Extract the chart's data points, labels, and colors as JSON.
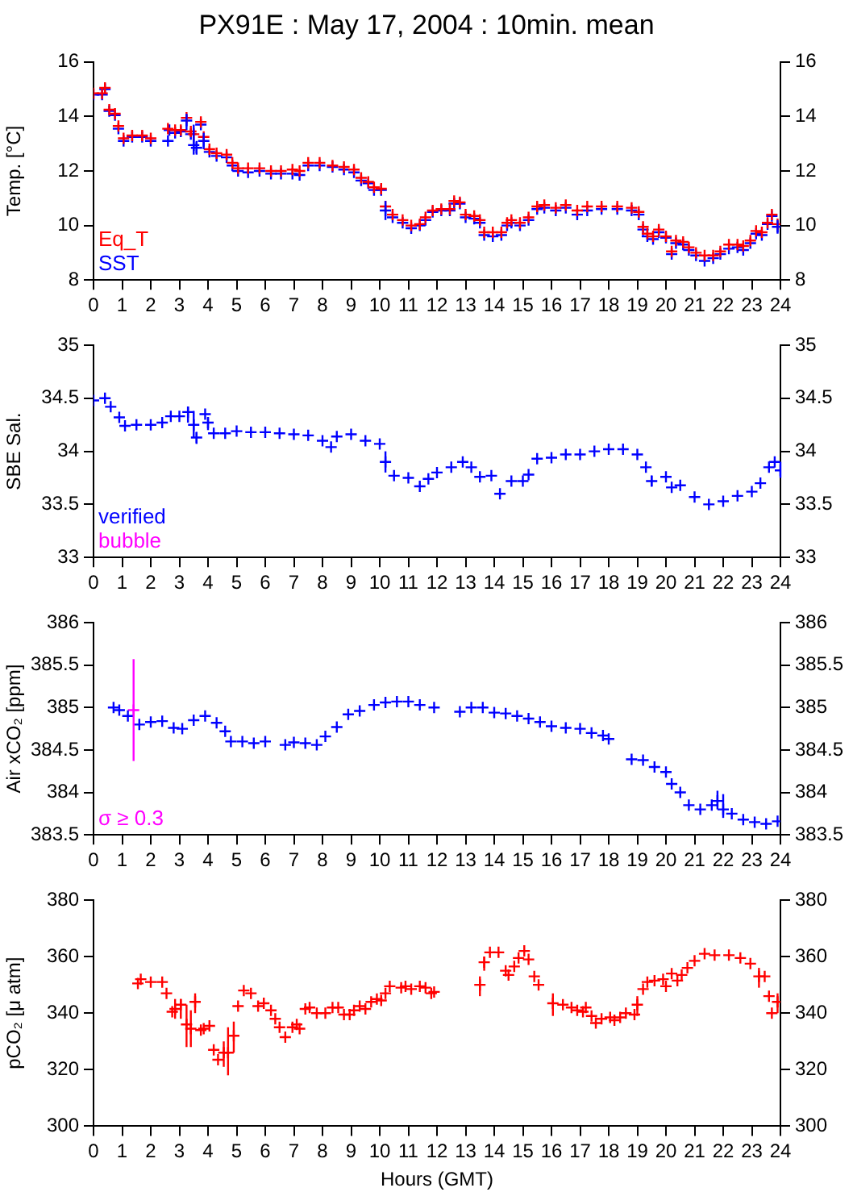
{
  "chart_data": [
    {
      "type": "scatter",
      "title": "PX91E : May 17, 2004 : 10min. mean",
      "ylabel": "Temp. [°C]",
      "marker": "cross",
      "legend": "bottom left",
      "xlim": [
        0,
        24
      ],
      "xticks": [
        0,
        1,
        2,
        3,
        4,
        5,
        6,
        7,
        8,
        9,
        10,
        11,
        12,
        13,
        14,
        15,
        16,
        17,
        18,
        19,
        20,
        21,
        22,
        23,
        24
      ],
      "ylim": [
        8,
        16
      ],
      "yticks": [
        8,
        10,
        12,
        14,
        16
      ],
      "y2lim": [
        8,
        16
      ],
      "y2ticks": [
        8,
        10,
        12,
        14,
        16
      ],
      "series": [
        {
          "name": "Eq_T",
          "color": "#ff0000",
          "x": [
            0,
            0.3,
            0.4,
            0.55,
            0.75,
            0.87,
            1.05,
            1.35,
            1.7,
            2.0,
            2.6,
            2.85,
            3.05,
            3.25,
            3.4,
            3.5,
            3.75,
            3.85,
            4.05,
            4.3,
            4.65,
            4.85,
            5.05,
            5.4,
            5.8,
            6.2,
            6.55,
            6.95,
            7.2,
            7.5,
            7.9,
            8.35,
            8.75,
            9.1,
            9.35,
            9.6,
            9.8,
            10.05,
            10.2,
            10.45,
            10.8,
            11.1,
            11.4,
            11.6,
            11.85,
            12.15,
            12.45,
            12.6,
            12.8,
            13.0,
            13.3,
            13.5,
            13.65,
            13.95,
            14.25,
            14.45,
            14.6,
            14.9,
            15.2,
            15.5,
            15.75,
            16.15,
            16.5,
            16.9,
            17.25,
            17.75,
            18.3,
            18.8,
            19.05,
            19.2,
            19.35,
            19.55,
            19.75,
            20.0,
            20.2,
            20.35,
            20.6,
            20.8,
            21.05,
            21.35,
            21.65,
            21.9,
            22.2,
            22.5,
            22.7,
            22.95,
            23.15,
            23.35,
            23.55,
            23.7,
            23.9
          ],
          "values": [
            14.85,
            14.85,
            15.05,
            14.25,
            14.1,
            13.65,
            13.2,
            13.3,
            13.3,
            13.2,
            13.55,
            13.5,
            13.5,
            13.95,
            13.45,
            13.35,
            13.8,
            13.25,
            12.8,
            12.65,
            12.6,
            12.3,
            12.1,
            12.1,
            12.1,
            12.0,
            12.0,
            12.05,
            12.0,
            12.3,
            12.3,
            12.2,
            12.15,
            12.05,
            11.75,
            11.6,
            11.4,
            11.35,
            10.7,
            10.4,
            10.2,
            10.0,
            10.05,
            10.3,
            10.55,
            10.6,
            10.6,
            10.9,
            10.85,
            10.4,
            10.35,
            10.2,
            9.75,
            9.75,
            9.75,
            10.1,
            10.2,
            10.1,
            10.3,
            10.7,
            10.75,
            10.65,
            10.75,
            10.55,
            10.7,
            10.7,
            10.7,
            10.65,
            10.5,
            9.95,
            9.7,
            9.6,
            9.85,
            9.6,
            9.05,
            9.45,
            9.4,
            9.2,
            9.0,
            8.9,
            8.9,
            9.05,
            9.3,
            9.3,
            9.25,
            9.45,
            9.8,
            9.75,
            10.1,
            10.4,
            10.05
          ]
        },
        {
          "name": "SST",
          "color": "#0000ff",
          "x": [
            0,
            0.3,
            0.4,
            0.55,
            0.75,
            0.87,
            1.05,
            1.35,
            1.7,
            2.0,
            2.6,
            2.65,
            2.85,
            3.05,
            3.25,
            3.4,
            3.5,
            3.6,
            3.75,
            3.85,
            4.05,
            4.3,
            4.65,
            4.85,
            5.05,
            5.4,
            5.8,
            6.2,
            6.55,
            6.95,
            7.2,
            7.5,
            7.9,
            8.35,
            8.75,
            9.1,
            9.35,
            9.6,
            9.8,
            10.05,
            10.2,
            10.45,
            10.8,
            11.1,
            11.4,
            11.6,
            11.85,
            12.15,
            12.45,
            12.6,
            12.8,
            13.0,
            13.3,
            13.5,
            13.65,
            13.95,
            14.25,
            14.45,
            14.6,
            14.9,
            15.2,
            15.5,
            15.75,
            16.15,
            16.5,
            16.9,
            17.25,
            17.75,
            18.3,
            18.8,
            19.05,
            19.2,
            19.35,
            19.55,
            19.75,
            20.0,
            20.2,
            20.35,
            20.6,
            20.8,
            21.05,
            21.35,
            21.65,
            21.9,
            22.2,
            22.5,
            22.7,
            22.95,
            23.15,
            23.35,
            23.55,
            23.7,
            23.9
          ],
          "values": [
            14.8,
            14.8,
            15.0,
            14.2,
            14.05,
            13.55,
            13.1,
            13.25,
            13.25,
            13.1,
            13.1,
            13.5,
            13.4,
            13.45,
            13.85,
            13.35,
            12.95,
            12.85,
            13.7,
            13.1,
            12.7,
            12.55,
            12.5,
            12.2,
            12.0,
            11.95,
            12.0,
            11.9,
            11.9,
            11.9,
            11.85,
            12.2,
            12.2,
            12.15,
            12.05,
            11.95,
            11.65,
            11.55,
            11.3,
            11.3,
            10.55,
            10.3,
            10.1,
            9.9,
            10.0,
            10.2,
            10.5,
            10.55,
            10.55,
            10.8,
            10.8,
            10.3,
            10.25,
            10.1,
            9.65,
            9.6,
            9.65,
            10.0,
            10.1,
            10.0,
            10.2,
            10.6,
            10.65,
            10.55,
            10.65,
            10.4,
            10.55,
            10.6,
            10.6,
            10.55,
            10.4,
            9.85,
            9.6,
            9.5,
            9.75,
            9.55,
            8.95,
            9.35,
            9.3,
            9.1,
            8.9,
            8.7,
            8.8,
            8.95,
            9.15,
            9.2,
            9.1,
            9.35,
            9.7,
            9.65,
            10.05,
            10.35,
            9.95
          ],
          "errors": [
            null,
            null,
            null,
            null,
            null,
            null,
            null,
            null,
            null,
            null,
            null,
            null,
            null,
            null,
            [
              13.5,
              14.1
            ],
            null,
            [
              12.6,
              13.7
            ],
            [
              12.6,
              13.1
            ],
            null,
            [
              12.8,
              13.4
            ],
            null,
            null,
            null,
            null,
            null,
            null,
            null,
            null,
            null,
            null,
            null,
            null,
            null,
            null,
            null,
            null,
            null,
            null,
            null,
            null,
            [
              10.2,
              10.9
            ],
            null,
            null,
            null,
            null,
            null,
            null,
            null,
            null,
            null,
            null,
            null,
            null,
            null,
            null,
            null,
            null,
            null,
            null,
            null,
            null,
            null,
            null,
            null,
            null,
            null,
            null,
            null,
            null,
            null,
            null,
            null,
            null,
            null,
            null,
            null,
            null,
            null,
            null,
            null,
            null,
            null,
            null,
            null,
            null,
            null,
            null,
            null,
            null,
            null,
            null,
            null,
            [
              9.7,
              10.2
            ]
          ]
        }
      ]
    },
    {
      "type": "scatter",
      "ylabel": "SBE Sal.",
      "marker": "cross",
      "legend": "bottom left",
      "xlim": [
        0,
        24
      ],
      "xticks": [
        0,
        1,
        2,
        3,
        4,
        5,
        6,
        7,
        8,
        9,
        10,
        11,
        12,
        13,
        14,
        15,
        16,
        17,
        18,
        19,
        20,
        21,
        22,
        23,
        24
      ],
      "ylim": [
        33,
        35
      ],
      "yticks": [
        33,
        33.5,
        34,
        34.5,
        35
      ],
      "y2lim": [
        33,
        35
      ],
      "y2ticks": [
        33,
        33.5,
        34,
        34.5,
        35
      ],
      "series": [
        {
          "name": "verified",
          "color": "#0000ff",
          "x": [
            0,
            0.4,
            0.6,
            0.9,
            1.1,
            1.5,
            2.0,
            2.4,
            2.7,
            3.0,
            3.3,
            3.5,
            3.6,
            3.9,
            4.0,
            4.2,
            4.6,
            5.0,
            5.5,
            6.0,
            6.5,
            7.0,
            7.5,
            8.0,
            8.3,
            8.5,
            9.0,
            9.5,
            10.0,
            10.2,
            10.5,
            11.0,
            11.4,
            11.7,
            12.0,
            12.5,
            12.9,
            13.2,
            13.5,
            13.9,
            14.2,
            14.6,
            15.0,
            15.2,
            15.5,
            16.0,
            16.5,
            17.0,
            17.5,
            18.0,
            18.5,
            19.0,
            19.3,
            19.5,
            20.0,
            20.2,
            20.5,
            21.0,
            21.5,
            22.0,
            22.5,
            23.0,
            23.3,
            23.6,
            23.8,
            24.0
          ],
          "values": [
            34.48,
            34.5,
            34.42,
            34.32,
            34.24,
            34.25,
            34.25,
            34.27,
            34.33,
            34.33,
            34.37,
            34.25,
            34.13,
            34.35,
            34.27,
            34.17,
            34.17,
            34.19,
            34.18,
            34.18,
            34.17,
            34.16,
            34.15,
            34.1,
            34.04,
            34.14,
            34.16,
            34.1,
            34.07,
            33.9,
            33.77,
            33.75,
            33.67,
            33.74,
            33.8,
            33.85,
            33.9,
            33.85,
            33.76,
            33.77,
            33.6,
            33.72,
            33.72,
            33.78,
            33.93,
            33.94,
            33.97,
            33.97,
            34.0,
            34.02,
            34.02,
            33.97,
            33.85,
            33.72,
            33.76,
            33.66,
            33.68,
            33.57,
            33.5,
            33.53,
            33.58,
            33.62,
            33.7,
            33.85,
            33.9,
            33.82
          ],
          "errors": [
            null,
            null,
            null,
            null,
            null,
            null,
            null,
            null,
            null,
            null,
            [
              34.27,
              34.42
            ],
            [
              34.13,
              34.38
            ],
            [
              34.07,
              34.18
            ],
            null,
            [
              34.2,
              34.32
            ],
            null,
            null,
            null,
            null,
            null,
            null,
            null,
            null,
            null,
            null,
            null,
            null,
            null,
            null,
            [
              33.8,
              34.0
            ],
            null,
            null,
            null,
            null,
            null,
            null,
            null,
            null,
            null,
            null,
            null,
            null,
            null,
            null,
            null,
            null,
            null,
            null,
            null,
            null,
            null,
            null,
            null,
            [
              33.67,
              33.77
            ],
            null,
            null,
            null,
            null,
            null,
            null,
            null,
            null,
            null,
            null,
            null,
            [
              33.75,
              33.9
            ]
          ]
        },
        {
          "name": "bubble",
          "color": "#ff00ff"
        }
      ]
    },
    {
      "type": "scatter",
      "ylabel": "Air xCO₂ [ppm]",
      "marker": "cross",
      "legend": "bottom left",
      "xlim": [
        0,
        24
      ],
      "xticks": [
        0,
        1,
        2,
        3,
        4,
        5,
        6,
        7,
        8,
        9,
        10,
        11,
        12,
        13,
        14,
        15,
        16,
        17,
        18,
        19,
        20,
        21,
        22,
        23,
        24
      ],
      "ylim": [
        383.5,
        386
      ],
      "yticks": [
        383.5,
        384,
        384.5,
        385,
        385.5,
        386
      ],
      "y2lim": [
        383.5,
        386
      ],
      "y2ticks": [
        383.5,
        384,
        384.5,
        385,
        385.5,
        386
      ],
      "series": [
        {
          "color": "#0000ff",
          "x": [
            0.7,
            0.9,
            1.2,
            1.6,
            2.0,
            2.4,
            2.8,
            3.1,
            3.5,
            3.9,
            4.3,
            4.6,
            4.8,
            5.2,
            5.6,
            6.0,
            6.7,
            7.0,
            7.4,
            7.8,
            8.1,
            8.5,
            8.9,
            9.3,
            9.8,
            10.2,
            10.6,
            11.0,
            11.4,
            11.9,
            12.8,
            13.2,
            13.6,
            14.0,
            14.4,
            14.8,
            15.2,
            15.6,
            16.0,
            16.5,
            17.0,
            17.4,
            17.8,
            18.0,
            18.8,
            19.2,
            19.6,
            20.0,
            20.2,
            20.5,
            20.8,
            21.2,
            21.6,
            21.8,
            22.0,
            22.3,
            22.7,
            23.1,
            23.5,
            23.9
          ],
          "values": [
            385.0,
            384.97,
            384.9,
            384.8,
            384.83,
            384.84,
            384.76,
            384.75,
            384.85,
            384.9,
            384.82,
            384.72,
            384.6,
            384.6,
            384.58,
            384.6,
            384.56,
            384.59,
            384.58,
            384.56,
            384.66,
            384.77,
            384.92,
            384.96,
            385.03,
            385.06,
            385.07,
            385.07,
            385.03,
            385.0,
            384.95,
            385.0,
            385.0,
            384.94,
            384.93,
            384.9,
            384.87,
            384.83,
            384.78,
            384.76,
            384.75,
            384.7,
            384.67,
            384.63,
            384.39,
            384.38,
            384.3,
            384.24,
            384.1,
            384.0,
            383.85,
            383.8,
            383.85,
            383.9,
            383.8,
            383.75,
            383.68,
            383.65,
            383.63,
            383.66
          ],
          "errors": [
            null,
            null,
            null,
            null,
            null,
            null,
            null,
            null,
            null,
            null,
            null,
            null,
            null,
            null,
            null,
            null,
            null,
            null,
            null,
            null,
            null,
            null,
            null,
            null,
            null,
            null,
            null,
            null,
            null,
            null,
            null,
            null,
            null,
            null,
            null,
            null,
            null,
            null,
            null,
            null,
            null,
            null,
            null,
            null,
            null,
            null,
            null,
            null,
            null,
            null,
            null,
            null,
            null,
            [
              383.8,
              384.02
            ],
            [
              383.7,
              383.98
            ],
            null,
            null,
            null,
            null,
            null
          ]
        },
        {
          "name": "σ ≥ 0.3",
          "color": "#ff00ff",
          "x": [
            1.4
          ],
          "values": [
            384.97
          ],
          "errors": [
            [
              384.37,
              385.57
            ]
          ]
        }
      ]
    },
    {
      "type": "scatter",
      "ylabel": "pCO₂ [μ atm]",
      "xlabel": "Hours (GMT)",
      "marker": "cross",
      "xlim": [
        0,
        24
      ],
      "xticks": [
        0,
        1,
        2,
        3,
        4,
        5,
        6,
        7,
        8,
        9,
        10,
        11,
        12,
        13,
        14,
        15,
        16,
        17,
        18,
        19,
        20,
        21,
        22,
        23,
        24
      ],
      "ylim": [
        300,
        380
      ],
      "yticks": [
        300,
        320,
        340,
        360,
        380
      ],
      "y2lim": [
        300,
        380
      ],
      "y2ticks": [
        300,
        320,
        340,
        360,
        380
      ],
      "series": [
        {
          "color": "#ff0000",
          "x": [
            1.55,
            1.65,
            2.0,
            2.4,
            2.55,
            2.75,
            2.85,
            3.05,
            3.25,
            3.4,
            3.55,
            3.75,
            3.85,
            4.05,
            4.2,
            4.35,
            4.55,
            4.7,
            4.9,
            5.05,
            5.25,
            5.5,
            5.75,
            5.95,
            6.2,
            6.35,
            6.5,
            6.7,
            6.95,
            7.1,
            7.2,
            7.4,
            7.55,
            7.8,
            8.1,
            8.35,
            8.55,
            8.75,
            8.95,
            9.1,
            9.3,
            9.5,
            9.7,
            9.9,
            10.05,
            10.2,
            10.35,
            10.75,
            10.9,
            11.1,
            11.4,
            11.6,
            11.8,
            11.9,
            13.5,
            13.65,
            13.85,
            14.15,
            14.4,
            14.5,
            14.7,
            14.85,
            15.05,
            15.2,
            15.4,
            15.55,
            16.05,
            16.4,
            16.7,
            16.9,
            17.1,
            17.2,
            17.4,
            17.55,
            17.75,
            18.05,
            18.2,
            18.4,
            18.6,
            18.9,
            19.0,
            19.2,
            19.35,
            19.6,
            19.9,
            20.0,
            20.2,
            20.4,
            20.55,
            20.75,
            21.0,
            21.35,
            21.7,
            22.2,
            22.6,
            22.95,
            23.25,
            23.45,
            23.6,
            23.7,
            23.9
          ],
          "values": [
            350.5,
            352,
            351,
            351,
            347,
            340.5,
            341.5,
            343,
            336,
            334.5,
            344,
            334,
            334.5,
            335.5,
            327,
            323.5,
            326,
            326,
            332,
            342.5,
            348,
            347,
            342.5,
            343.5,
            341,
            338,
            335,
            331.5,
            335,
            336,
            334.5,
            341.5,
            342,
            340,
            340,
            342,
            342,
            339.5,
            339.5,
            341,
            342.5,
            341.5,
            344,
            345,
            344.5,
            347,
            349.5,
            349,
            349.5,
            348.5,
            349.5,
            349,
            347,
            347.5,
            350,
            358,
            361.5,
            361.5,
            355,
            353.5,
            356.5,
            359.5,
            362,
            359,
            353,
            350,
            343.5,
            343,
            342,
            341,
            340.5,
            342,
            339,
            336.5,
            338,
            338.5,
            337.5,
            338.5,
            340,
            339.5,
            343,
            348.5,
            351,
            351.5,
            352,
            349.5,
            354,
            351.5,
            353.5,
            356,
            358.5,
            361,
            360.5,
            360.5,
            359.5,
            357.5,
            353,
            353,
            346,
            340,
            344
          ],
          "errors": [
            null,
            null,
            null,
            null,
            null,
            null,
            [
              338,
              345
            ],
            [
              338,
              345
            ],
            [
              328,
              343
            ],
            [
              328,
              341
            ],
            [
              340,
              347
            ],
            null,
            null,
            null,
            null,
            null,
            [
              321,
              330
            ],
            [
              318,
              335
            ],
            [
              326,
              337
            ],
            null,
            null,
            null,
            null,
            null,
            null,
            null,
            null,
            null,
            null,
            null,
            null,
            null,
            null,
            null,
            null,
            null,
            null,
            null,
            null,
            null,
            null,
            null,
            null,
            null,
            null,
            null,
            null,
            null,
            null,
            null,
            null,
            null,
            null,
            null,
            [
              346,
              353
            ],
            [
              355,
              360
            ],
            null,
            null,
            null,
            null,
            null,
            null,
            null,
            null,
            null,
            null,
            [
              339,
              347
            ],
            null,
            null,
            null,
            null,
            null,
            null,
            null,
            null,
            null,
            null,
            null,
            null,
            null,
            [
              339,
              346
            ],
            null,
            null,
            null,
            null,
            null,
            null,
            null,
            null,
            null,
            null,
            null,
            null,
            null,
            null,
            null,
            [
              349,
              356
            ],
            null,
            null,
            null,
            [
              340,
              347
            ]
          ]
        }
      ]
    }
  ]
}
